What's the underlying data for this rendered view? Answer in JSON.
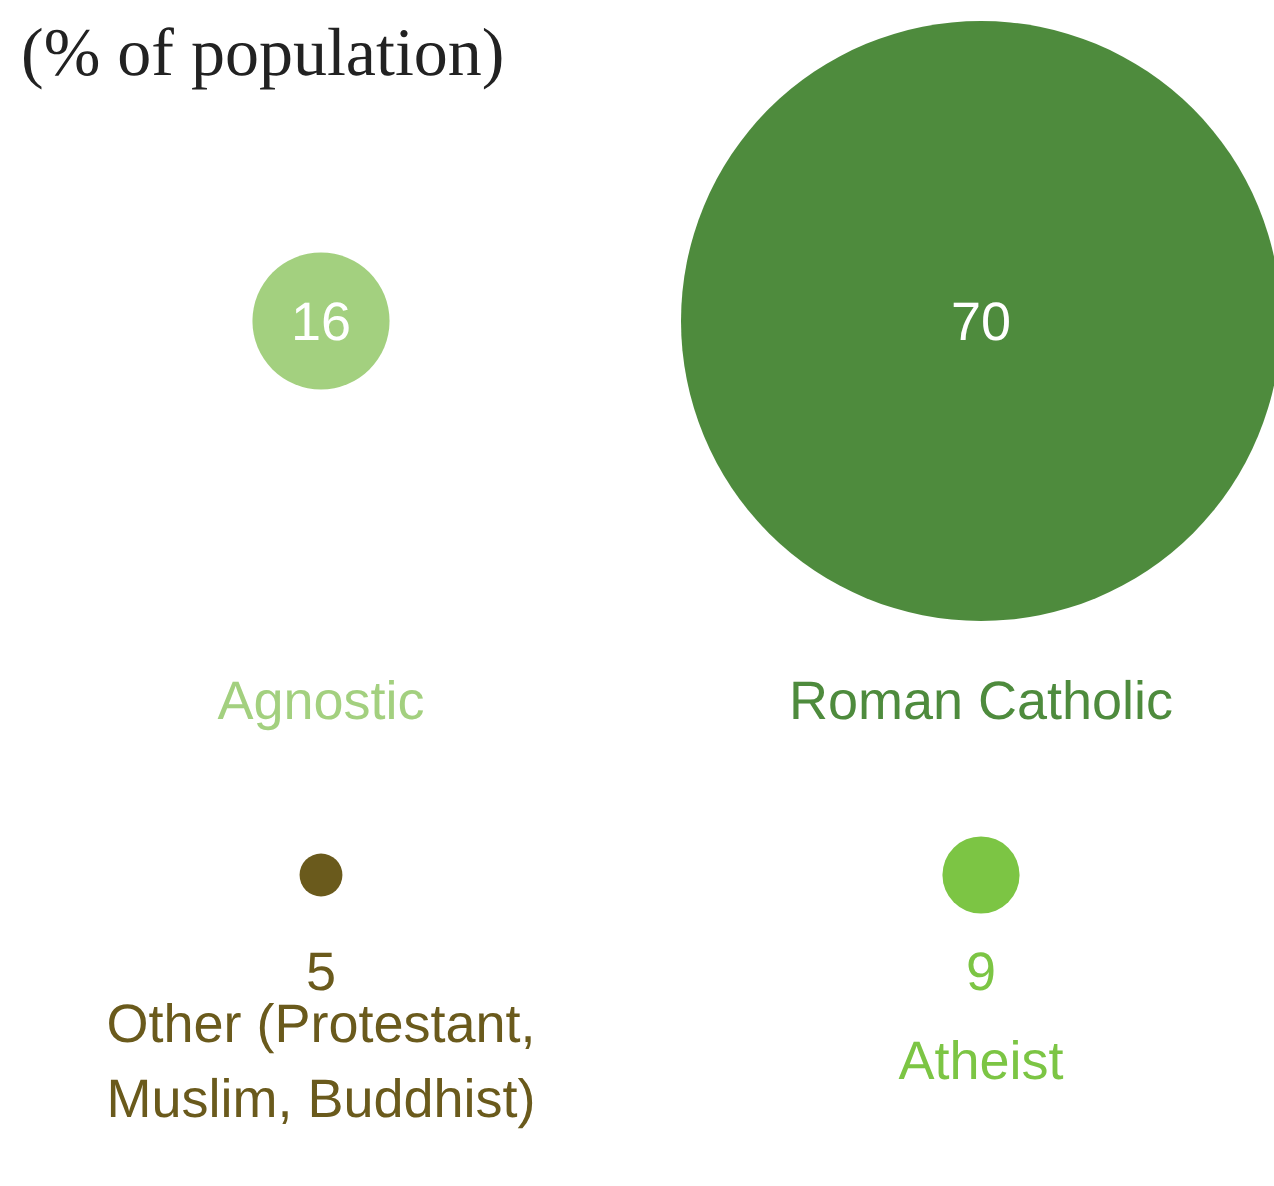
{
  "chart_data": {
    "type": "other",
    "title": "(% of population)",
    "categories": [
      "Agnostic",
      "Roman Catholic",
      "Other (Protestant, Muslim, Buddhist)",
      "Atheist"
    ],
    "values": [
      16,
      70,
      5,
      9
    ],
    "colors": [
      "#a3d07f",
      "#4e8b3d",
      "#6a5a1c",
      "#7cc544"
    ],
    "data_labels": true
  }
}
